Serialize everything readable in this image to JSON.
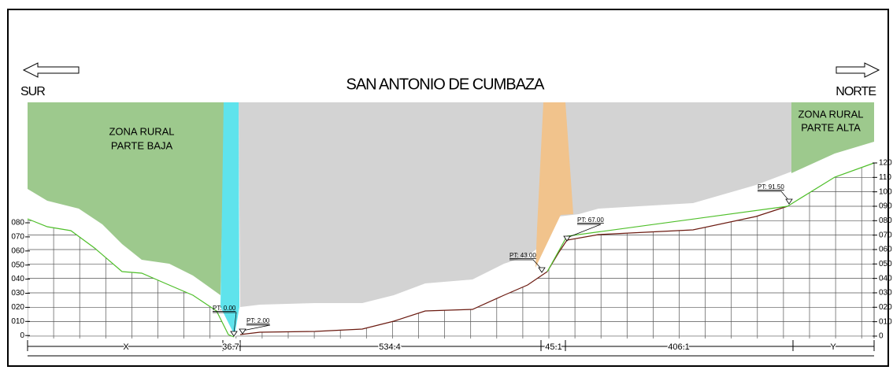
{
  "header": {
    "title": "SAN ANTONIO DE CUMBAZA",
    "left_label": "SUR",
    "right_label": "NORTE"
  },
  "zones": [
    {
      "lines": [
        "ZONA RURAL",
        "PARTE  BAJA"
      ]
    },
    {
      "lines": [
        "ZONA RURAL",
        "PARTE  ALTA"
      ]
    }
  ],
  "stations": [
    {
      "label": "PT: 0.00"
    },
    {
      "label": "PT: 2.00"
    },
    {
      "label": "PT: 43.00"
    },
    {
      "label": "PT: 67.00"
    },
    {
      "label": "PT: 91.50"
    }
  ],
  "elevation_left": [
    "080",
    "070",
    "060",
    "050",
    "040",
    "030",
    "020",
    "010",
    "0"
  ],
  "elevation_right": [
    "120",
    "110",
    "100",
    "090",
    "080",
    "070",
    "060",
    "050",
    "040",
    "030",
    "020",
    "010",
    "0"
  ],
  "segments": [
    "X",
    "36.7",
    "534.4",
    "45.1",
    "406.1",
    "Y"
  ]
}
